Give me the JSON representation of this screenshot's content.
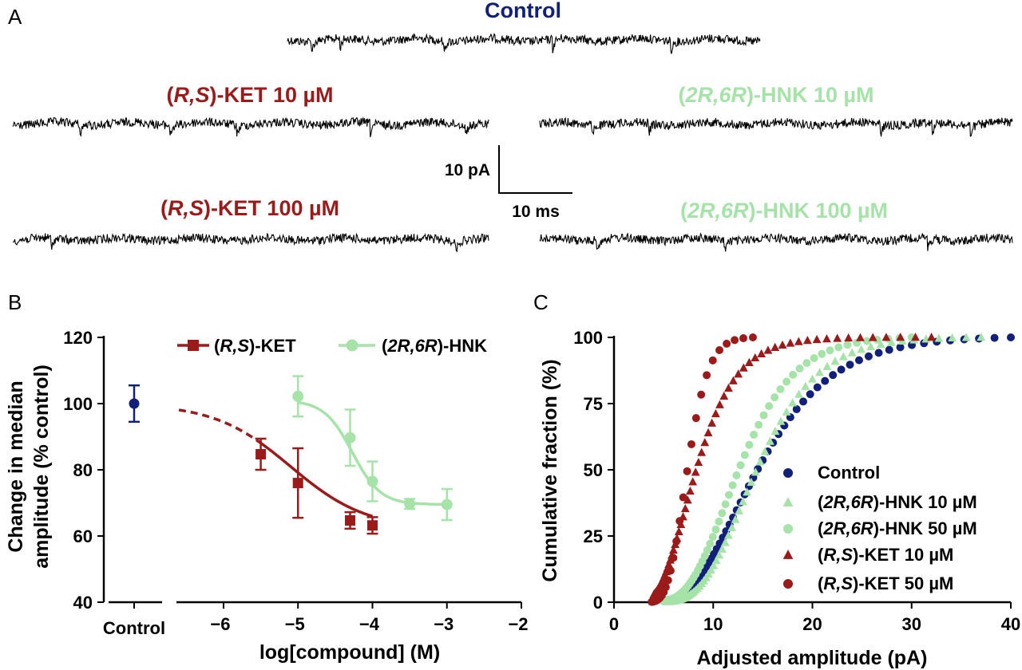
{
  "panels": {
    "a": "A",
    "b": "B",
    "c": "C"
  },
  "colors": {
    "control": "#12207a",
    "ket": "#9b1b1b",
    "hnk": "#a6e3a9",
    "trace": "#000000"
  },
  "traces": [
    {
      "id": "control",
      "label": "Control",
      "color": "#12207a",
      "dips": [
        0.05,
        0.11,
        0.33,
        0.56,
        0.81
      ]
    },
    {
      "id": "ket10",
      "label_pre": "(",
      "label_ital": "R,S",
      "label_post": ")-KET 10 µM",
      "color": "#9b1b1b",
      "dips": [
        0.14,
        0.33,
        0.47,
        0.75,
        0.95
      ]
    },
    {
      "id": "ket100",
      "label_pre": "(",
      "label_ital": "R,S",
      "label_post": ")-KET 100 µM",
      "color": "#9b1b1b",
      "dips": [
        0.08,
        0.93
      ]
    },
    {
      "id": "hnk10",
      "label_pre": "(",
      "label_ital": "2R,6R",
      "label_post": ")-HNK 10 µM",
      "color": "#a6e3a9",
      "dips": [
        0.11,
        0.23,
        0.72,
        0.83,
        0.91
      ]
    },
    {
      "id": "hnk100",
      "label_pre": "(",
      "label_ital": "2R,6R",
      "label_post": ")-HNK 100 µM",
      "color": "#a6e3a9",
      "dips": [
        0.12,
        0.39,
        0.82
      ]
    }
  ],
  "scale_bar": {
    "y_label": "10 pA",
    "x_label": "10 ms"
  },
  "chart_data": [
    {
      "panel": "B",
      "type": "scatter",
      "title": "",
      "xlabel": "log[compound] (M)",
      "ylabel": "Change in median amplitude (% control)",
      "ylabel_lines": [
        "Change in median",
        "amplitude (% control)"
      ],
      "xlim": [
        -6.6,
        -2
      ],
      "ylim": [
        40,
        120
      ],
      "xticks": [
        -6,
        -5,
        -4,
        -3,
        -2
      ],
      "yticks": [
        40,
        60,
        80,
        100,
        120
      ],
      "grid": false,
      "legend_position": "top",
      "control": {
        "category": "Control",
        "mean": 100,
        "sem": 5.5
      },
      "series": [
        {
          "name": "(R,S)-KET",
          "name_pre": "(",
          "name_ital": "R,S",
          "name_post": ")-KET",
          "marker": "square",
          "color": "#9b1b1b",
          "x": [
            -5.5,
            -5,
            -4.3,
            -4
          ],
          "y": [
            84.7,
            76,
            64.7,
            63.2
          ],
          "err": [
            4.7,
            10.5,
            2.5,
            2.5
          ],
          "fit": {
            "top": 100,
            "bottom": 62,
            "logEC50": -5.1,
            "hill": 0.85,
            "solid_from": -5.5,
            "solid_to": -4,
            "dashed_from": -6.6
          }
        },
        {
          "name": "(2R,6R)-HNK",
          "name_pre": "(",
          "name_ital": "2R,6R",
          "name_post": ")-HNK",
          "marker": "circle",
          "color": "#a6e3a9",
          "x": [
            -5,
            -4.3,
            -4,
            -3.5,
            -3
          ],
          "y": [
            102.2,
            89.7,
            76.5,
            69.7,
            69.5
          ],
          "err": [
            6.1,
            8.5,
            6.0,
            1.5,
            4.7
          ],
          "fit": {
            "top": 101,
            "bottom": 69.5,
            "logEC50": -4.27,
            "hill": 2.3,
            "solid_from": -5,
            "solid_to": -3
          }
        }
      ]
    },
    {
      "panel": "C",
      "type": "scatter",
      "title": "",
      "xlabel": "Adjusted amplitude (pA)",
      "ylabel": "Cumulative fraction (%)",
      "xlim": [
        0,
        40
      ],
      "ylim": [
        0,
        100
      ],
      "xticks": [
        0,
        10,
        20,
        30,
        40
      ],
      "yticks": [
        0,
        25,
        50,
        75,
        100
      ],
      "grid": false,
      "legend_position": "bottom-right",
      "series": [
        {
          "name": "Control",
          "marker": "circle",
          "color": "#12207a",
          "n": 80,
          "x_start": 5,
          "x_end": 40,
          "median": 14.5,
          "sigma": 0.4
        },
        {
          "name": "(2R,6R)-HNK 10 µM",
          "name_pre": "(",
          "name_ital": "2R,6R",
          "name_post": ")-HNK 10 µM",
          "marker": "triangle",
          "color": "#a6e3a9",
          "n": 75,
          "x_start": 5.5,
          "x_end": 37,
          "median": 14.4,
          "sigma": 0.33
        },
        {
          "name": "(2R,6R)-HNK 50 µM",
          "name_pre": "(",
          "name_ital": "2R,6R",
          "name_post": ")-HNK 50 µM",
          "marker": "circle",
          "color": "#a6e3a9",
          "n": 70,
          "x_start": 5,
          "x_end": 30,
          "median": 12.6,
          "sigma": 0.34
        },
        {
          "name": "(R,S)-KET 10 µM",
          "name_pre": "(",
          "name_ital": "R,S",
          "name_post": ")-KET 10 µM",
          "marker": "triangle",
          "color": "#9b1b1b",
          "n": 65,
          "x_start": 4,
          "x_end": 32,
          "median": 8.3,
          "sigma": 0.38
        },
        {
          "name": "(R,S)-KET 50 µM",
          "name_pre": "(",
          "name_ital": "R,S",
          "name_post": ")-KET 50 µM",
          "marker": "circle",
          "color": "#9b1b1b",
          "n": 30,
          "x_start": 3.8,
          "x_end": 14,
          "median": 7.4,
          "sigma": 0.22
        }
      ]
    }
  ]
}
